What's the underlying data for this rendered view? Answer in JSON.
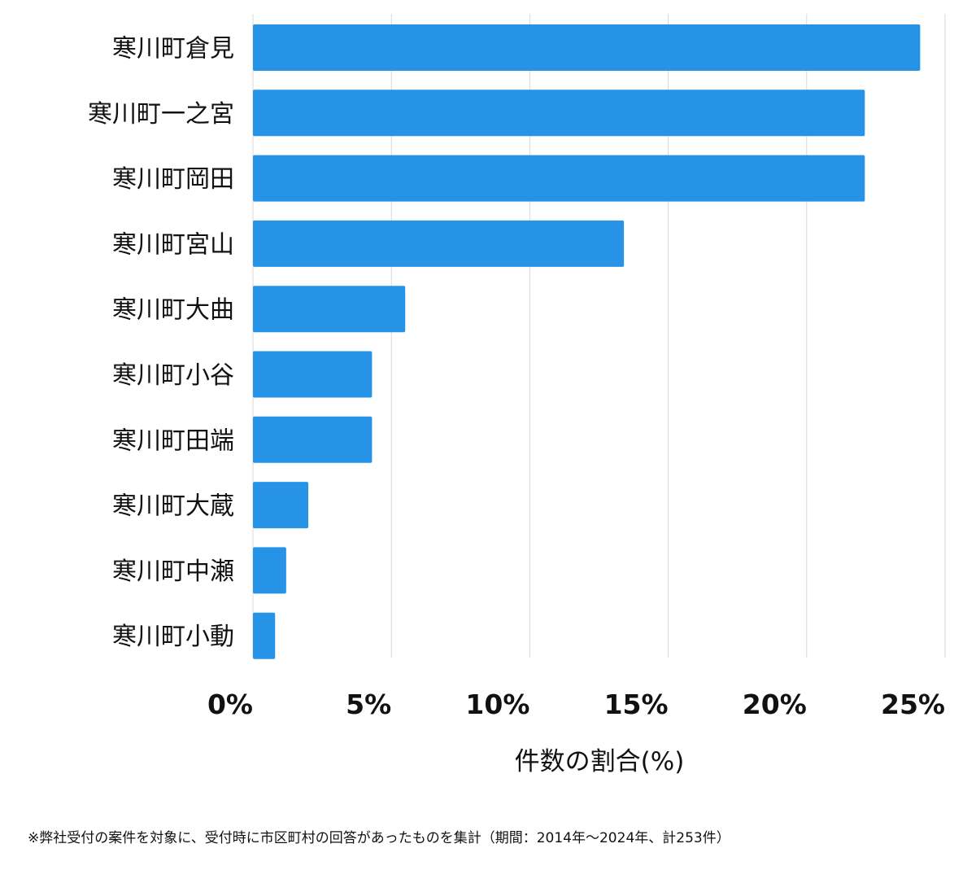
{
  "chart_data": {
    "type": "bar",
    "orientation": "horizontal",
    "categories": [
      "寒川町倉見",
      "寒川町一之宮",
      "寒川町岡田",
      "寒川町宮山",
      "寒川町大曲",
      "寒川町小谷",
      "寒川町田端",
      "寒川町大蔵",
      "寒川町中瀬",
      "寒川町小動"
    ],
    "values": [
      24.1,
      22.1,
      22.1,
      13.4,
      5.5,
      4.3,
      4.3,
      2.0,
      1.2,
      0.8
    ],
    "xlim": [
      0,
      25
    ],
    "xticks": [
      0,
      5,
      10,
      15,
      20,
      25
    ],
    "xtick_labels": [
      "0%",
      "5%",
      "10%",
      "15%",
      "20%",
      "25%"
    ],
    "xlabel": "件数の割合(%)",
    "ylabel": "",
    "title": "",
    "grid": "vertical",
    "bar_color": "#2693e6",
    "grid_color": "#d9d9d9"
  },
  "footnote": "※弊社受付の案件を対象に、受付時に市区町村の回答があったものを集計（期間：2014年〜2024年、計253件）"
}
